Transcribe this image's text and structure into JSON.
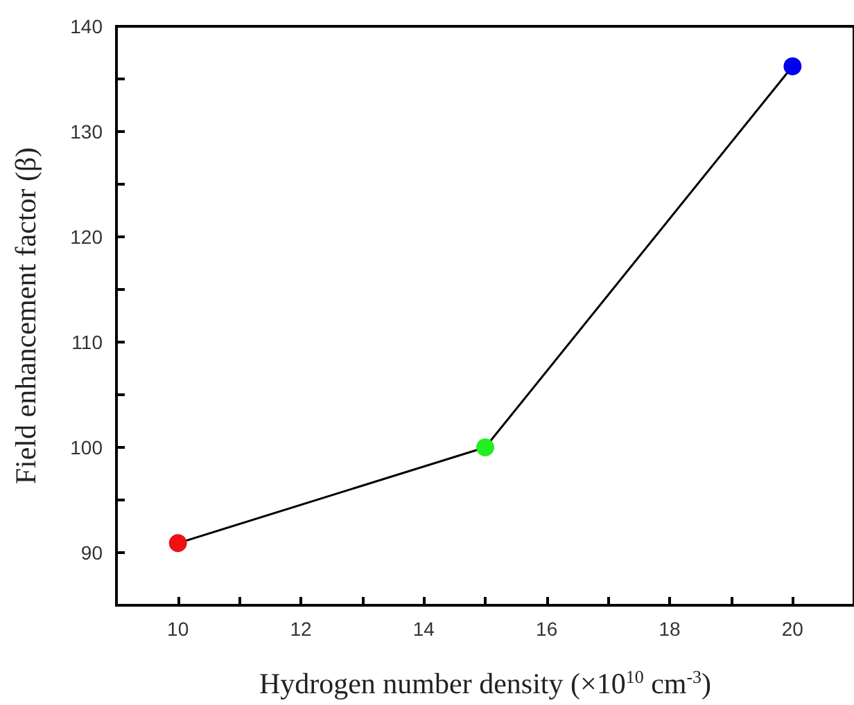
{
  "chart_data": {
    "type": "line",
    "xlabel": "Hydrogen number density (×10$^{10}$ cm$^{-3}$)",
    "ylabel": "Field enhancement factor (β)",
    "x": [
      10,
      15,
      20
    ],
    "series": [
      {
        "color": "#000000",
        "colors": [
          "#ee1111",
          "#22ee22",
          "#0000ee"
        ],
        "values": [
          90.9,
          100,
          136.2
        ]
      }
    ],
    "xlim": [
      9,
      21
    ],
    "ylim": [
      85,
      140
    ],
    "xticks": [
      10,
      {
        "value": 11,
        "label": null
      },
      12,
      {
        "value": 13,
        "label": null
      },
      14,
      {
        "value": 15,
        "label": null
      },
      16,
      {
        "value": 17,
        "label": null
      },
      18,
      {
        "value": 19,
        "label": null
      },
      20
    ],
    "yticks": [
      90,
      {
        "value": 95,
        "label": null
      },
      100,
      {
        "value": 105,
        "label": null
      },
      110,
      {
        "value": 115,
        "label": null
      },
      120,
      {
        "value": 125,
        "label": null
      },
      130,
      {
        "value": 135,
        "label": null
      },
      140
    ],
    "marker": "circle",
    "line_style": "solid"
  }
}
